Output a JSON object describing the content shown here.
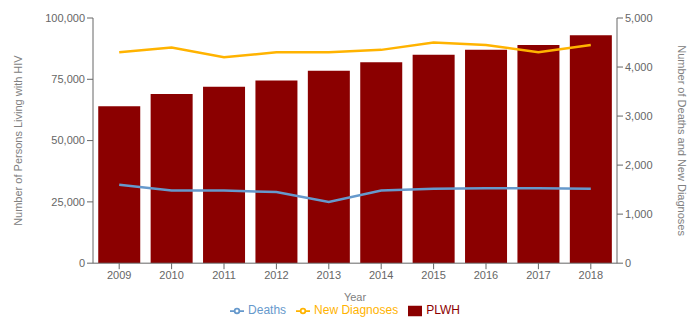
{
  "chart_data": {
    "type": "bar",
    "categories": [
      "2009",
      "2010",
      "2011",
      "2012",
      "2013",
      "2014",
      "2015",
      "2016",
      "2017",
      "2018"
    ],
    "xlabel": "Year",
    "ylabel": "Number of Persons Living with HIV",
    "y2label": "Number of Deaths and New Diagnoses",
    "series": [
      {
        "name": "PLWH",
        "type": "bar",
        "color": "#8B0000",
        "values": [
          64000,
          69000,
          72000,
          74500,
          78500,
          82000,
          85000,
          87000,
          89000,
          93000
        ]
      },
      {
        "name": "New Diagnoses",
        "type": "line",
        "color": "#FFB300",
        "axis": "y2",
        "values": [
          4300,
          4400,
          4200,
          4300,
          4300,
          4350,
          4500,
          4450,
          4300,
          4450
        ]
      },
      {
        "name": "Deaths",
        "type": "line",
        "color": "#6699CC",
        "axis": "y2",
        "values": [
          1600,
          1480,
          1480,
          1450,
          1250,
          1480,
          1520,
          1530,
          1530,
          1520
        ]
      }
    ],
    "ylim": [
      0,
      100000
    ],
    "yticks": [
      0,
      {
        "value": 25000,
        "label": "25,000"
      },
      {
        "value": 50000,
        "label": "50,000"
      },
      {
        "value": 75000,
        "label": "75,000"
      },
      {
        "value": 100000,
        "label": "100,000"
      }
    ],
    "y2lim": [
      0,
      5000
    ],
    "y2ticks": [
      0,
      {
        "value": 1000,
        "label": "1,000"
      },
      {
        "value": 2000,
        "label": "2,000"
      },
      {
        "value": 3000,
        "label": "3,000"
      },
      {
        "value": 4000,
        "label": "4,000"
      },
      {
        "value": 5000,
        "label": "5,000"
      }
    ],
    "grid": false,
    "legend": "bottom"
  }
}
